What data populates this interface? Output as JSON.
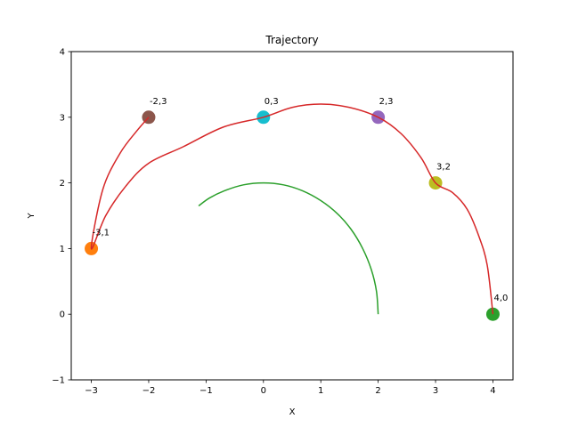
{
  "chart_data": {
    "type": "line",
    "title": "Trajectory",
    "xlabel": "X",
    "ylabel": "Y",
    "xlim": [
      -3.35,
      4.35
    ],
    "ylim": [
      -1,
      4
    ],
    "xticks": [
      -3,
      -2,
      -1,
      0,
      1,
      2,
      3,
      4
    ],
    "yticks": [
      -1,
      0,
      1,
      2,
      3,
      4
    ],
    "grid": false,
    "colors": {
      "trajectory": "#d62728",
      "inner_arc": "#2ca02c"
    },
    "trajectory_path": [
      [
        4.0,
        0.0
      ],
      [
        3.9,
        0.75
      ],
      [
        3.75,
        1.2
      ],
      [
        3.55,
        1.6
      ],
      [
        3.3,
        1.85
      ],
      [
        3.0,
        2.0
      ],
      [
        2.75,
        2.38
      ],
      [
        2.4,
        2.75
      ],
      [
        2.0,
        3.0
      ],
      [
        1.5,
        3.15
      ],
      [
        1.0,
        3.2
      ],
      [
        0.5,
        3.15
      ],
      [
        0.0,
        3.0
      ],
      [
        -0.7,
        2.85
      ],
      [
        -1.4,
        2.55
      ],
      [
        -2.0,
        2.3
      ],
      [
        -2.4,
        1.95
      ],
      [
        -2.75,
        1.5
      ],
      [
        -3.0,
        1.0
      ],
      [
        -2.8,
        1.9
      ],
      [
        -2.5,
        2.45
      ],
      [
        -2.2,
        2.8
      ],
      [
        -2.0,
        3.0
      ]
    ],
    "inner_arc": [
      [
        2.0,
        0.0
      ],
      [
        1.97,
        0.35
      ],
      [
        1.88,
        0.68
      ],
      [
        1.73,
        1.0
      ],
      [
        1.53,
        1.29
      ],
      [
        1.29,
        1.53
      ],
      [
        1.0,
        1.73
      ],
      [
        0.68,
        1.88
      ],
      [
        0.35,
        1.97
      ],
      [
        0.0,
        2.0
      ],
      [
        -0.35,
        1.97
      ],
      [
        -0.68,
        1.88
      ],
      [
        -0.94,
        1.77
      ],
      [
        -1.13,
        1.65
      ]
    ],
    "waypoints": [
      {
        "label": "4,0",
        "x": 4,
        "y": 0,
        "color": "#2ca02c"
      },
      {
        "label": "3,2",
        "x": 3,
        "y": 2,
        "color": "#bcbd22"
      },
      {
        "label": "2,3",
        "x": 2,
        "y": 3,
        "color": "#9467bd"
      },
      {
        "label": "0,3",
        "x": 0,
        "y": 3,
        "color": "#17becf"
      },
      {
        "label": "-3,1",
        "x": -3,
        "y": 1,
        "color": "#ff7f0e"
      },
      {
        "label": "-2,3",
        "x": -2,
        "y": 3,
        "color": "#8c564b"
      }
    ]
  }
}
